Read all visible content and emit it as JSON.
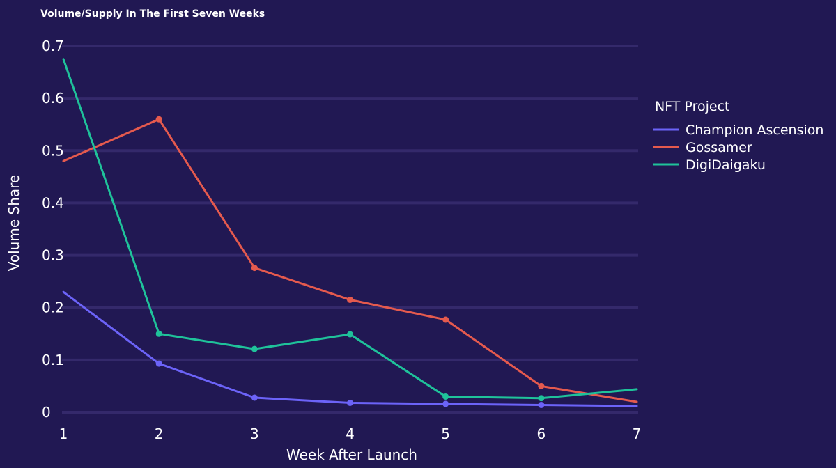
{
  "chart_data": {
    "type": "line",
    "title": "Volume/Supply In The First Seven Weeks",
    "xlabel": "Week After Launch",
    "ylabel": "Volume Share",
    "x": [
      1,
      2,
      3,
      4,
      5,
      6,
      7
    ],
    "xlim": [
      1,
      7
    ],
    "ylim": [
      0,
      0.7
    ],
    "x_ticks": [
      "1",
      "2",
      "3",
      "4",
      "5",
      "6",
      "7"
    ],
    "y_ticks": [
      {
        "value": 0,
        "label": "0"
      },
      {
        "value": 0.1,
        "label": "0.1"
      },
      {
        "value": 0.2,
        "label": "0.2"
      },
      {
        "value": 0.3,
        "label": "0.3"
      },
      {
        "value": 0.4,
        "label": "0.4"
      },
      {
        "value": 0.5,
        "label": "0.5"
      },
      {
        "value": 0.6,
        "label": "0.6"
      },
      {
        "value": 0.7,
        "label": "0.7"
      }
    ],
    "grid": true,
    "legend": {
      "title": "NFT Project",
      "placement": "right"
    },
    "series": [
      {
        "name": "Champion Ascension",
        "color": "#6c63f8",
        "values": [
          0.23,
          0.093,
          0.028,
          0.018,
          0.016,
          0.014,
          0.012
        ]
      },
      {
        "name": "Gossamer",
        "color": "#e55a4e",
        "values": [
          0.48,
          0.56,
          0.276,
          0.215,
          0.177,
          0.05,
          0.02
        ]
      },
      {
        "name": "DigiDaigaku",
        "color": "#1fc29a",
        "values": [
          0.675,
          0.15,
          0.121,
          0.149,
          0.03,
          0.027,
          0.044
        ]
      }
    ]
  }
}
